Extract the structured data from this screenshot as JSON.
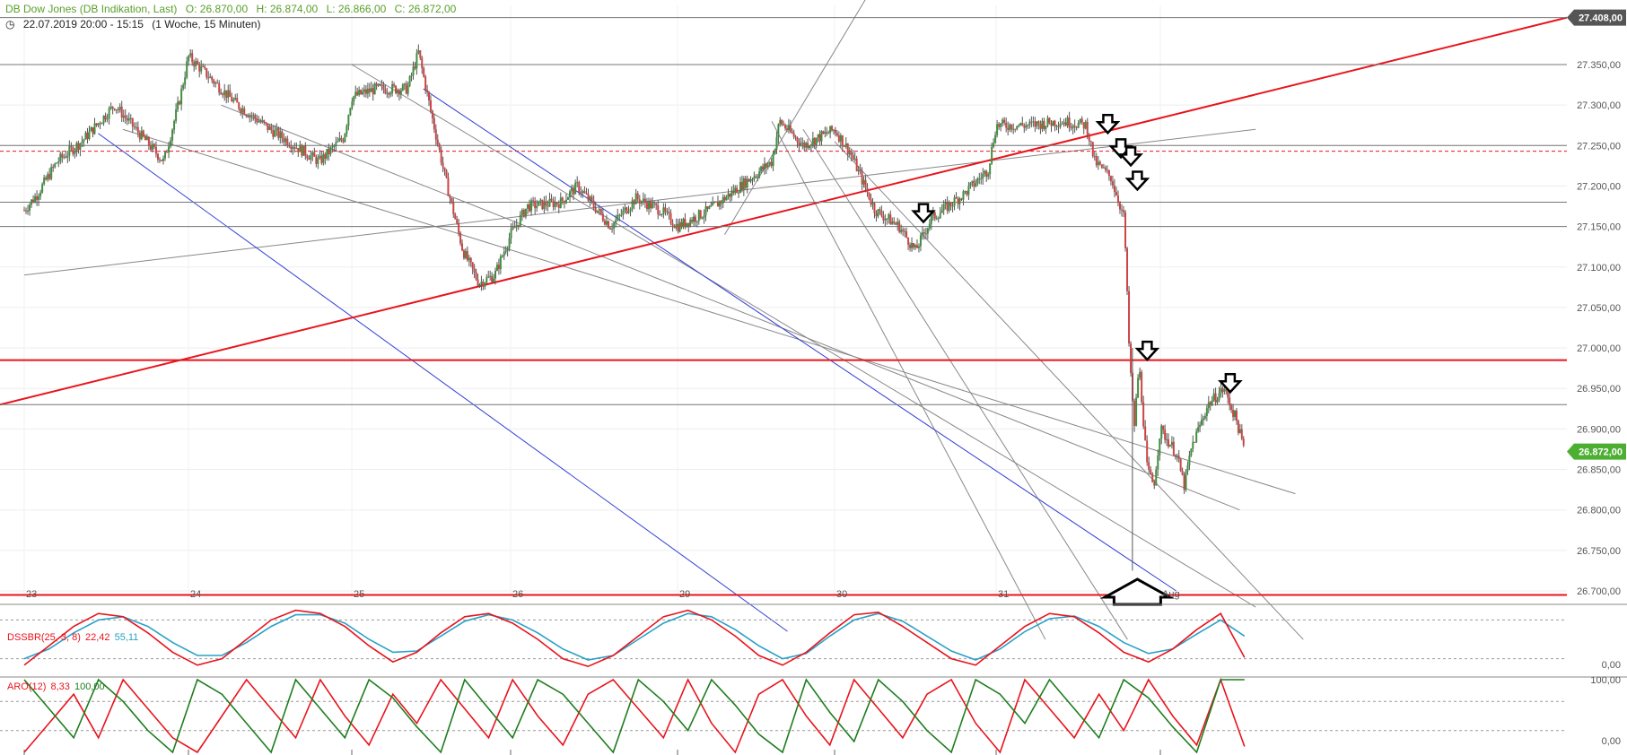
{
  "header": {
    "instrument": "DB Dow Jones (DB Indikation, Last)",
    "open": "O: 26.870,00",
    "high": "H: 26.874,00",
    "low": "L: 26.866,00",
    "close": "C: 26.872,00",
    "timerange": "22.07.2019 20:00 - 15:15",
    "interval": "(1 Woche, 15 Minuten)"
  },
  "indicators": {
    "dss": {
      "label": "DSSBR(25, 3, 8)",
      "value1": "22,42",
      "value2": "55,11",
      "color1": "#e8141c",
      "color2": "#2aa1c7"
    },
    "aro": {
      "label": "ARO(12)",
      "value1": "8,33",
      "value2": "100,00",
      "color1": "#e8141c",
      "color2": "#1e7d1e"
    }
  },
  "price_tags": {
    "top": "27.408,00",
    "last": "26.872,00",
    "top_color": "#555555",
    "last_color": "#4caf32"
  },
  "chart_data": {
    "type": "candlestick",
    "ylim": [
      26680,
      27420
    ],
    "y_ticks": [
      "27.350,00",
      "27.300,00",
      "27.250,00",
      "27.200,00",
      "27.150,00",
      "27.100,00",
      "27.050,00",
      "27.000,00",
      "26.950,00",
      "26.900,00",
      "26.850,00",
      "26.800,00",
      "26.750,00",
      "26.700,00"
    ],
    "y_tick_values": [
      27350,
      27300,
      27250,
      27200,
      27150,
      27100,
      27050,
      27000,
      26950,
      26900,
      26850,
      26800,
      26750,
      26700
    ],
    "x_labels": [
      "23",
      "24",
      "25",
      "26",
      "29",
      "30",
      "31",
      "Aug"
    ],
    "x_label_sessions": [
      0,
      1,
      2,
      3,
      4,
      5,
      6,
      7
    ],
    "price_path": [
      [
        0.0,
        27170
      ],
      [
        0.08,
        27190
      ],
      [
        0.2,
        27230
      ],
      [
        0.35,
        27255
      ],
      [
        0.55,
        27300
      ],
      [
        0.7,
        27265
      ],
      [
        0.85,
        27230
      ],
      [
        0.95,
        27310
      ],
      [
        1.0,
        27360
      ],
      [
        1.15,
        27330
      ],
      [
        1.3,
        27300
      ],
      [
        1.5,
        27270
      ],
      [
        1.65,
        27250
      ],
      [
        1.8,
        27230
      ],
      [
        1.95,
        27260
      ],
      [
        2.0,
        27310
      ],
      [
        2.15,
        27320
      ],
      [
        2.35,
        27320
      ],
      [
        2.42,
        27365
      ],
      [
        2.5,
        27290
      ],
      [
        2.6,
        27200
      ],
      [
        2.7,
        27120
      ],
      [
        2.8,
        27080
      ],
      [
        2.9,
        27090
      ],
      [
        3.0,
        27140
      ],
      [
        3.1,
        27175
      ],
      [
        3.3,
        27180
      ],
      [
        3.4,
        27200
      ],
      [
        3.6,
        27150
      ],
      [
        3.75,
        27185
      ],
      [
        3.9,
        27170
      ],
      [
        4.0,
        27150
      ],
      [
        4.2,
        27170
      ],
      [
        4.4,
        27200
      ],
      [
        4.6,
        27230
      ],
      [
        4.65,
        27280
      ],
      [
        4.8,
        27250
      ],
      [
        4.9,
        27260
      ],
      [
        5.0,
        27270
      ],
      [
        5.1,
        27240
      ],
      [
        5.25,
        27170
      ],
      [
        5.4,
        27150
      ],
      [
        5.5,
        27120
      ],
      [
        5.6,
        27160
      ],
      [
        5.8,
        27190
      ],
      [
        5.95,
        27220
      ],
      [
        6.0,
        27275
      ],
      [
        6.2,
        27275
      ],
      [
        6.4,
        27280
      ],
      [
        6.55,
        27275
      ],
      [
        6.6,
        27230
      ],
      [
        6.7,
        27210
      ],
      [
        6.78,
        27160
      ],
      [
        6.81,
        27000
      ],
      [
        6.84,
        26900
      ],
      [
        6.87,
        26980
      ],
      [
        6.92,
        26850
      ],
      [
        6.96,
        26830
      ],
      [
        7.0,
        26900
      ],
      [
        7.1,
        26870
      ],
      [
        7.15,
        26830
      ],
      [
        7.2,
        26880
      ],
      [
        7.3,
        26930
      ],
      [
        7.4,
        26950
      ],
      [
        7.48,
        26910
      ],
      [
        7.53,
        26872
      ]
    ],
    "resistance_levels": [
      27408,
      27350,
      27250,
      27180,
      27150,
      26930
    ],
    "red_levels": [
      26985,
      26695
    ],
    "down_arrows": [
      [
        6.68,
        27270
      ],
      [
        6.76,
        27240
      ],
      [
        6.82,
        27230
      ],
      [
        6.86,
        27200
      ],
      [
        5.55,
        27160
      ],
      [
        6.92,
        26990
      ],
      [
        7.44,
        26950
      ]
    ],
    "up_arrows": [
      [
        6.86,
        26710
      ]
    ],
    "dss": {
      "red": [
        10,
        40,
        70,
        90,
        85,
        60,
        30,
        10,
        20,
        50,
        80,
        95,
        90,
        70,
        40,
        15,
        30,
        60,
        85,
        90,
        75,
        50,
        20,
        8,
        25,
        55,
        85,
        95,
        80,
        55,
        25,
        10,
        30,
        60,
        88,
        92,
        70,
        45,
        20,
        10,
        40,
        70,
        90,
        85,
        60,
        30,
        15,
        35,
        65,
        90,
        22
      ],
      "blue": [
        20,
        35,
        60,
        80,
        85,
        70,
        45,
        25,
        25,
        45,
        70,
        88,
        88,
        75,
        50,
        30,
        32,
        55,
        78,
        88,
        80,
        60,
        35,
        18,
        25,
        50,
        75,
        90,
        85,
        65,
        40,
        20,
        28,
        55,
        80,
        90,
        78,
        55,
        32,
        18,
        35,
        62,
        82,
        86,
        70,
        45,
        28,
        35,
        58,
        80,
        55
      ]
    },
    "aro": {
      "green": [
        100,
        60,
        20,
        100,
        70,
        30,
        0,
        100,
        80,
        40,
        0,
        100,
        60,
        20,
        100,
        75,
        35,
        0,
        100,
        60,
        20,
        100,
        80,
        40,
        0,
        100,
        70,
        30,
        100,
        65,
        25,
        0,
        100,
        55,
        15,
        100,
        70,
        30,
        0,
        100,
        80,
        40,
        100,
        60,
        20,
        100,
        75,
        35,
        0,
        100,
        100
      ],
      "red": [
        0,
        40,
        80,
        20,
        100,
        60,
        20,
        0,
        50,
        100,
        60,
        20,
        100,
        50,
        10,
        80,
        40,
        100,
        60,
        20,
        100,
        50,
        10,
        80,
        100,
        60,
        20,
        100,
        40,
        0,
        80,
        100,
        50,
        10,
        100,
        60,
        20,
        80,
        100,
        40,
        0,
        100,
        60,
        20,
        80,
        30,
        100,
        50,
        10,
        100,
        8
      ]
    }
  }
}
